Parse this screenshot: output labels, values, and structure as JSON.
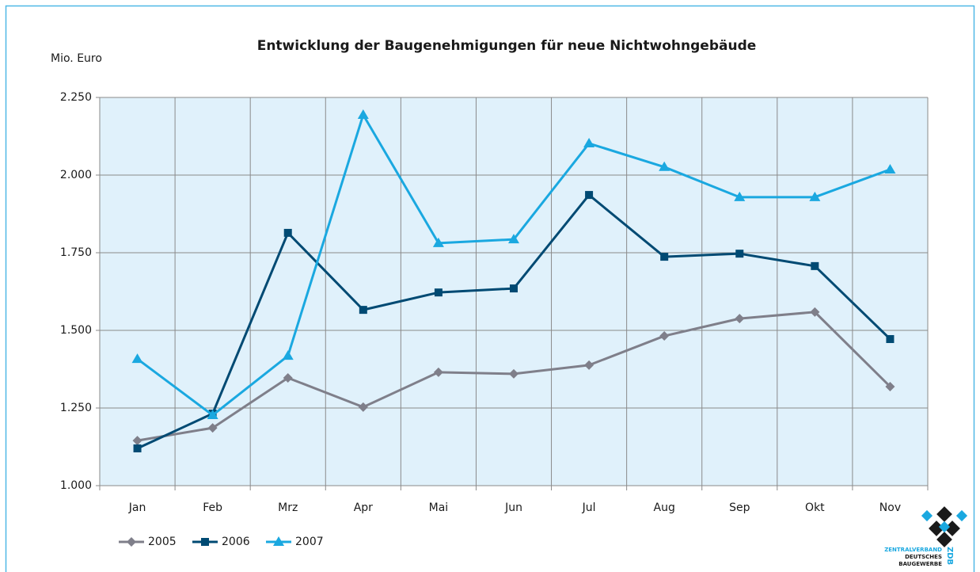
{
  "chart_data": {
    "type": "line",
    "title": "Entwicklung der Baugenehmigungen für neue Nichtwohngebäude",
    "y_label": "Mio. Euro",
    "categories": [
      "Jan",
      "Feb",
      "Mrz",
      "Apr",
      "Mai",
      "Jun",
      "Jul",
      "Aug",
      "Sep",
      "Okt",
      "Nov"
    ],
    "series": [
      {
        "name": "2005",
        "color": "#7f7f8a",
        "marker": "diamond",
        "values": [
          1145,
          1186,
          1347,
          1253,
          1365,
          1360,
          1388,
          1482,
          1538,
          1559,
          1319
        ]
      },
      {
        "name": "2006",
        "color": "#004a73",
        "marker": "square",
        "values": [
          1120,
          1232,
          1814,
          1566,
          1622,
          1635,
          1936,
          1737,
          1747,
          1707,
          1472
        ]
      },
      {
        "name": "2007",
        "color": "#1aa8e0",
        "marker": "triangle",
        "values": [
          1408,
          1227,
          1418,
          2194,
          1781,
          1793,
          2102,
          2026,
          1929,
          1929,
          2018
        ]
      }
    ],
    "ylim": [
      1000,
      2250
    ],
    "yticks": [
      {
        "value": 1000,
        "label": "1.000"
      },
      {
        "value": 1250,
        "label": "1.250"
      },
      {
        "value": 1500,
        "label": "1.500"
      },
      {
        "value": 1750,
        "label": "1.750"
      },
      {
        "value": 2000,
        "label": "2.000"
      },
      {
        "value": 2250,
        "label": "2.250"
      }
    ],
    "grid": true,
    "legend": "bottom-left",
    "logo": {
      "lines": [
        "ZENTRALVERBAND",
        "DEUTSCHES",
        "BAUGEWERBE"
      ],
      "abbr": "ZDB"
    }
  }
}
